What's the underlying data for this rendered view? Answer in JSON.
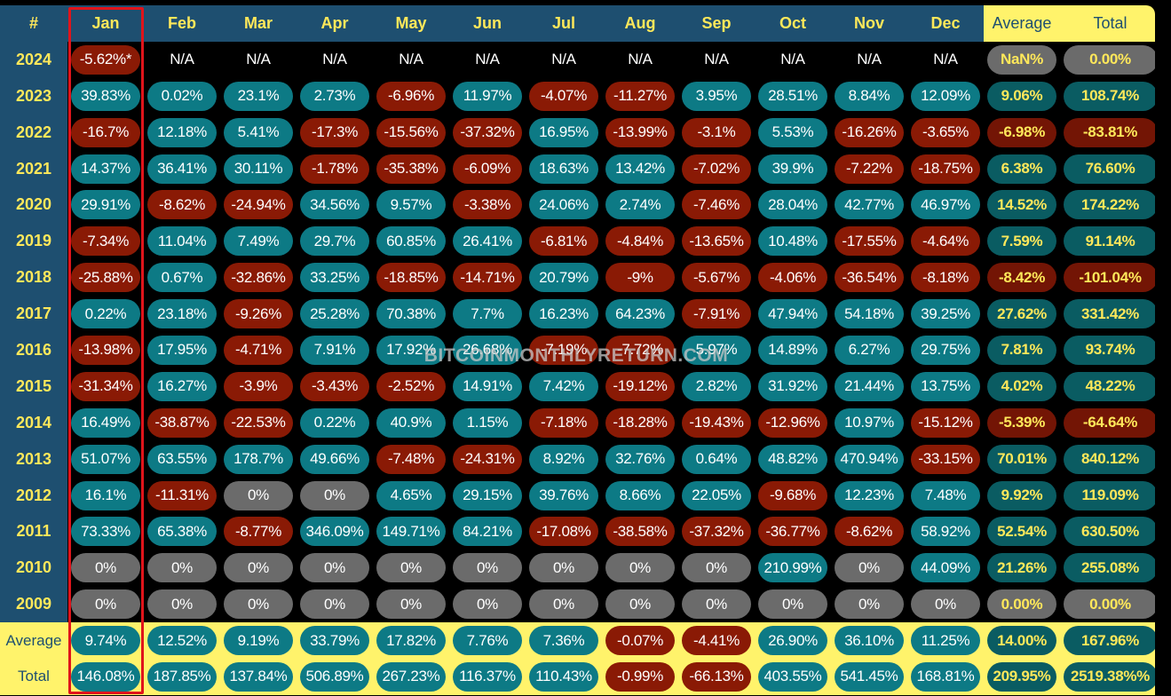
{
  "header": {
    "corner": "#",
    "months": [
      "Jan",
      "Feb",
      "Mar",
      "Apr",
      "May",
      "Jun",
      "Jul",
      "Aug",
      "Sep",
      "Oct",
      "Nov",
      "Dec"
    ],
    "average_label": "Average",
    "total_label": "Total"
  },
  "rows": [
    {
      "year": "2024",
      "values": [
        "-5.62%*",
        "N/A",
        "N/A",
        "N/A",
        "N/A",
        "N/A",
        "N/A",
        "N/A",
        "N/A",
        "N/A",
        "N/A",
        "N/A"
      ],
      "average": "NaN%",
      "total": "0.00%"
    },
    {
      "year": "2023",
      "values": [
        "39.83%",
        "0.02%",
        "23.1%",
        "2.73%",
        "-6.96%",
        "11.97%",
        "-4.07%",
        "-11.27%",
        "3.95%",
        "28.51%",
        "8.84%",
        "12.09%"
      ],
      "average": "9.06%",
      "total": "108.74%"
    },
    {
      "year": "2022",
      "values": [
        "-16.7%",
        "12.18%",
        "5.41%",
        "-17.3%",
        "-15.56%",
        "-37.32%",
        "16.95%",
        "-13.99%",
        "-3.1%",
        "5.53%",
        "-16.26%",
        "-3.65%"
      ],
      "average": "-6.98%",
      "total": "-83.81%"
    },
    {
      "year": "2021",
      "values": [
        "14.37%",
        "36.41%",
        "30.11%",
        "-1.78%",
        "-35.38%",
        "-6.09%",
        "18.63%",
        "13.42%",
        "-7.02%",
        "39.9%",
        "-7.22%",
        "-18.75%"
      ],
      "average": "6.38%",
      "total": "76.60%"
    },
    {
      "year": "2020",
      "values": [
        "29.91%",
        "-8.62%",
        "-24.94%",
        "34.56%",
        "9.57%",
        "-3.38%",
        "24.06%",
        "2.74%",
        "-7.46%",
        "28.04%",
        "42.77%",
        "46.97%"
      ],
      "average": "14.52%",
      "total": "174.22%"
    },
    {
      "year": "2019",
      "values": [
        "-7.34%",
        "11.04%",
        "7.49%",
        "29.7%",
        "60.85%",
        "26.41%",
        "-6.81%",
        "-4.84%",
        "-13.65%",
        "10.48%",
        "-17.55%",
        "-4.64%"
      ],
      "average": "7.59%",
      "total": "91.14%"
    },
    {
      "year": "2018",
      "values": [
        "-25.88%",
        "0.67%",
        "-32.86%",
        "33.25%",
        "-18.85%",
        "-14.71%",
        "20.79%",
        "-9%",
        "-5.67%",
        "-4.06%",
        "-36.54%",
        "-8.18%"
      ],
      "average": "-8.42%",
      "total": "-101.04%"
    },
    {
      "year": "2017",
      "values": [
        "0.22%",
        "23.18%",
        "-9.26%",
        "25.28%",
        "70.38%",
        "7.7%",
        "16.23%",
        "64.23%",
        "-7.91%",
        "47.94%",
        "54.18%",
        "39.25%"
      ],
      "average": "27.62%",
      "total": "331.42%"
    },
    {
      "year": "2016",
      "values": [
        "-13.98%",
        "17.95%",
        "-4.71%",
        "7.91%",
        "17.92%",
        "26.68%",
        "-7.19%",
        "-7.72%",
        "5.97%",
        "14.89%",
        "6.27%",
        "29.75%"
      ],
      "average": "7.81%",
      "total": "93.74%"
    },
    {
      "year": "2015",
      "values": [
        "-31.34%",
        "16.27%",
        "-3.9%",
        "-3.43%",
        "-2.52%",
        "14.91%",
        "7.42%",
        "-19.12%",
        "2.82%",
        "31.92%",
        "21.44%",
        "13.75%"
      ],
      "average": "4.02%",
      "total": "48.22%"
    },
    {
      "year": "2014",
      "values": [
        "16.49%",
        "-38.87%",
        "-22.53%",
        "0.22%",
        "40.9%",
        "1.15%",
        "-7.18%",
        "-18.28%",
        "-19.43%",
        "-12.96%",
        "10.97%",
        "-15.12%"
      ],
      "average": "-5.39%",
      "total": "-64.64%"
    },
    {
      "year": "2013",
      "values": [
        "51.07%",
        "63.55%",
        "178.7%",
        "49.66%",
        "-7.48%",
        "-24.31%",
        "8.92%",
        "32.76%",
        "0.64%",
        "48.82%",
        "470.94%",
        "-33.15%"
      ],
      "average": "70.01%",
      "total": "840.12%"
    },
    {
      "year": "2012",
      "values": [
        "16.1%",
        "-11.31%",
        "0%",
        "0%",
        "4.65%",
        "29.15%",
        "39.76%",
        "8.66%",
        "22.05%",
        "-9.68%",
        "12.23%",
        "7.48%"
      ],
      "average": "9.92%",
      "total": "119.09%"
    },
    {
      "year": "2011",
      "values": [
        "73.33%",
        "65.38%",
        "-8.77%",
        "346.09%",
        "149.71%",
        "84.21%",
        "-17.08%",
        "-38.58%",
        "-37.32%",
        "-36.77%",
        "-8.62%",
        "58.92%"
      ],
      "average": "52.54%",
      "total": "630.50%"
    },
    {
      "year": "2010",
      "values": [
        "0%",
        "0%",
        "0%",
        "0%",
        "0%",
        "0%",
        "0%",
        "0%",
        "0%",
        "210.99%",
        "0%",
        "44.09%"
      ],
      "average": "21.26%",
      "total": "255.08%"
    },
    {
      "year": "2009",
      "values": [
        "0%",
        "0%",
        "0%",
        "0%",
        "0%",
        "0%",
        "0%",
        "0%",
        "0%",
        "0%",
        "0%",
        "0%"
      ],
      "average": "0.00%",
      "total": "0.00%"
    }
  ],
  "footer": [
    {
      "label": "Average",
      "values": [
        "9.74%",
        "12.52%",
        "9.19%",
        "33.79%",
        "17.82%",
        "7.76%",
        "7.36%",
        "-0.07%",
        "-4.41%",
        "26.90%",
        "36.10%",
        "11.25%"
      ],
      "average": "14.00%",
      "total": "167.96%"
    },
    {
      "label": "Total",
      "values": [
        "146.08%",
        "187.85%",
        "137.84%",
        "506.89%",
        "267.23%",
        "116.37%",
        "110.43%",
        "-0.99%",
        "-66.13%",
        "403.55%",
        "541.45%",
        "168.81%"
      ],
      "average": "209.95%",
      "total": "2519.38%%"
    }
  ],
  "watermark": "BITCOINMONTHLYRETURN.COM",
  "highlighted_column": "Jan",
  "colors": {
    "positive": "#0d7a85",
    "negative": "#8a1a05",
    "zero": "#6b6b6b",
    "header_bg": "#1e4f70",
    "header_text": "#ffe85a",
    "summary_bg": "#fff36b",
    "highlight_border": "#e0141b"
  }
}
